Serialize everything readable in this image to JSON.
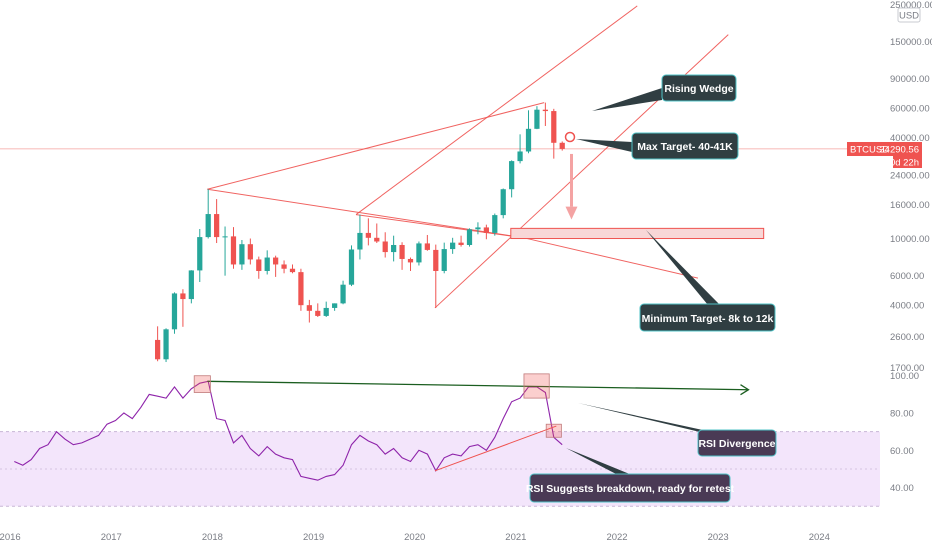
{
  "chart_data": {
    "type": "candlestick",
    "symbol": "BTCUSD",
    "last_price": "34290.56",
    "countdown": "30d 22h",
    "currency_badge": "USD",
    "price_scale": "log",
    "price_ticks": [
      "250000.00",
      "150000.00",
      "90000.00",
      "60000.00",
      "40000.00",
      "24000.00",
      "16000.00",
      "10000.00",
      "6000.00",
      "4000.00",
      "2600.00",
      "1700.00"
    ],
    "rsi_ticks": [
      "100.00",
      "80.00",
      "60.00",
      "40.00"
    ],
    "x_ticks": [
      "2016",
      "2017",
      "2018",
      "2019",
      "2020",
      "2021",
      "2022",
      "2023",
      "2024"
    ],
    "x_range": [
      2015.9,
      2024.6
    ],
    "price_range": [
      1640,
      255000
    ],
    "rsi_range": [
      28,
      102
    ],
    "rsi_band": [
      30,
      70
    ],
    "rsi_midline": 50,
    "colors": {
      "up": "#26a69a",
      "down": "#ef5350",
      "rsi": "#8e24aa",
      "wedge": "#ef5350",
      "callout": "#303e42",
      "callout_border": "#4fc3c7",
      "rsi_callout": "#4a3a55",
      "rsi_band": "#f3e5fb"
    },
    "candles": [
      {
        "t": "2017-06",
        "o": 2480,
        "h": 2990,
        "l": 1850,
        "c": 1900
      },
      {
        "t": "2017-07",
        "o": 1900,
        "h": 2910,
        "l": 1830,
        "c": 2870
      },
      {
        "t": "2017-08",
        "o": 2870,
        "h": 4770,
        "l": 2700,
        "c": 4700
      },
      {
        "t": "2017-09",
        "o": 4700,
        "h": 4980,
        "l": 2970,
        "c": 4350
      },
      {
        "t": "2017-10",
        "o": 4350,
        "h": 6470,
        "l": 4100,
        "c": 6450
      },
      {
        "t": "2017-11",
        "o": 6450,
        "h": 11400,
        "l": 5500,
        "c": 10200
      },
      {
        "t": "2017-12",
        "o": 10200,
        "h": 19700,
        "l": 10000,
        "c": 14000
      },
      {
        "t": "2018-01",
        "o": 14000,
        "h": 17200,
        "l": 9400,
        "c": 10200
      },
      {
        "t": "2018-02",
        "o": 10200,
        "h": 11800,
        "l": 6000,
        "c": 10300
      },
      {
        "t": "2018-03",
        "o": 10300,
        "h": 11700,
        "l": 6600,
        "c": 7000
      },
      {
        "t": "2018-04",
        "o": 7000,
        "h": 9800,
        "l": 6500,
        "c": 9250
      },
      {
        "t": "2018-05",
        "o": 9250,
        "h": 10000,
        "l": 7000,
        "c": 7500
      },
      {
        "t": "2018-06",
        "o": 7500,
        "h": 7800,
        "l": 5750,
        "c": 6400
      },
      {
        "t": "2018-07",
        "o": 6400,
        "h": 8500,
        "l": 6100,
        "c": 7700
      },
      {
        "t": "2018-08",
        "o": 7700,
        "h": 7900,
        "l": 5900,
        "c": 7000
      },
      {
        "t": "2018-09",
        "o": 7000,
        "h": 7400,
        "l": 6200,
        "c": 6600
      },
      {
        "t": "2018-10",
        "o": 6600,
        "h": 7000,
        "l": 6200,
        "c": 6300
      },
      {
        "t": "2018-11",
        "o": 6300,
        "h": 6600,
        "l": 3700,
        "c": 4000
      },
      {
        "t": "2018-12",
        "o": 4000,
        "h": 4300,
        "l": 3150,
        "c": 3700
      },
      {
        "t": "2019-01",
        "o": 3700,
        "h": 4100,
        "l": 3400,
        "c": 3450
      },
      {
        "t": "2019-02",
        "o": 3450,
        "h": 4200,
        "l": 3400,
        "c": 3850
      },
      {
        "t": "2019-03",
        "o": 3850,
        "h": 4100,
        "l": 3700,
        "c": 4100
      },
      {
        "t": "2019-04",
        "o": 4100,
        "h": 5600,
        "l": 4050,
        "c": 5300
      },
      {
        "t": "2019-05",
        "o": 5300,
        "h": 9100,
        "l": 5200,
        "c": 8600
      },
      {
        "t": "2019-06",
        "o": 8600,
        "h": 13900,
        "l": 7500,
        "c": 10800
      },
      {
        "t": "2019-07",
        "o": 10800,
        "h": 13200,
        "l": 9100,
        "c": 10100
      },
      {
        "t": "2019-08",
        "o": 10100,
        "h": 12300,
        "l": 9400,
        "c": 9600
      },
      {
        "t": "2019-09",
        "o": 9600,
        "h": 10900,
        "l": 7700,
        "c": 8300
      },
      {
        "t": "2019-10",
        "o": 8300,
        "h": 10400,
        "l": 7300,
        "c": 9150
      },
      {
        "t": "2019-11",
        "o": 9150,
        "h": 9500,
        "l": 6500,
        "c": 7550
      },
      {
        "t": "2019-12",
        "o": 7550,
        "h": 7700,
        "l": 6400,
        "c": 7200
      },
      {
        "t": "2020-01",
        "o": 7200,
        "h": 9600,
        "l": 6900,
        "c": 9350
      },
      {
        "t": "2020-02",
        "o": 9350,
        "h": 10500,
        "l": 8450,
        "c": 8550
      },
      {
        "t": "2020-03",
        "o": 8550,
        "h": 9200,
        "l": 3850,
        "c": 6400
      },
      {
        "t": "2020-04",
        "o": 6400,
        "h": 9450,
        "l": 6200,
        "c": 8650
      },
      {
        "t": "2020-05",
        "o": 8650,
        "h": 10100,
        "l": 8100,
        "c": 9450
      },
      {
        "t": "2020-06",
        "o": 9450,
        "h": 10400,
        "l": 8950,
        "c": 9150
      },
      {
        "t": "2020-07",
        "o": 9150,
        "h": 11500,
        "l": 8950,
        "c": 11350
      },
      {
        "t": "2020-08",
        "o": 11350,
        "h": 12500,
        "l": 10600,
        "c": 11650
      },
      {
        "t": "2020-09",
        "o": 11650,
        "h": 12100,
        "l": 9900,
        "c": 10800
      },
      {
        "t": "2020-10",
        "o": 10800,
        "h": 14100,
        "l": 10400,
        "c": 13800
      },
      {
        "t": "2020-11",
        "o": 13800,
        "h": 19900,
        "l": 13200,
        "c": 19700
      },
      {
        "t": "2020-12",
        "o": 19700,
        "h": 29300,
        "l": 17600,
        "c": 29000
      },
      {
        "t": "2021-01",
        "o": 29000,
        "h": 41900,
        "l": 28100,
        "c": 33100
      },
      {
        "t": "2021-02",
        "o": 33100,
        "h": 58300,
        "l": 32300,
        "c": 45200
      },
      {
        "t": "2021-03",
        "o": 45200,
        "h": 61700,
        "l": 45000,
        "c": 58800
      },
      {
        "t": "2021-04",
        "o": 58800,
        "h": 64800,
        "l": 47000,
        "c": 57700
      },
      {
        "t": "2021-05",
        "o": 57700,
        "h": 59500,
        "l": 30000,
        "c": 37300
      },
      {
        "t": "2021-06",
        "o": 37300,
        "h": 38000,
        "l": 33500,
        "c": 34290
      }
    ],
    "rsi": [
      {
        "t": "2016-01",
        "v": 54
      },
      {
        "t": "2016-02",
        "v": 52
      },
      {
        "t": "2016-03",
        "v": 55
      },
      {
        "t": "2016-04",
        "v": 61
      },
      {
        "t": "2016-05",
        "v": 63
      },
      {
        "t": "2016-06",
        "v": 70
      },
      {
        "t": "2016-07",
        "v": 66
      },
      {
        "t": "2016-08",
        "v": 63
      },
      {
        "t": "2016-09",
        "v": 64
      },
      {
        "t": "2016-10",
        "v": 66
      },
      {
        "t": "2016-11",
        "v": 68
      },
      {
        "t": "2016-12",
        "v": 74
      },
      {
        "t": "2017-01",
        "v": 76
      },
      {
        "t": "2017-02",
        "v": 80
      },
      {
        "t": "2017-03",
        "v": 77
      },
      {
        "t": "2017-04",
        "v": 83
      },
      {
        "t": "2017-05",
        "v": 90
      },
      {
        "t": "2017-06",
        "v": 89
      },
      {
        "t": "2017-07",
        "v": 88
      },
      {
        "t": "2017-08",
        "v": 94
      },
      {
        "t": "2017-09",
        "v": 88
      },
      {
        "t": "2017-10",
        "v": 93
      },
      {
        "t": "2017-11",
        "v": 96
      },
      {
        "t": "2017-12",
        "v": 97
      },
      {
        "t": "2018-01",
        "v": 77
      },
      {
        "t": "2018-02",
        "v": 76
      },
      {
        "t": "2018-03",
        "v": 64
      },
      {
        "t": "2018-04",
        "v": 68
      },
      {
        "t": "2018-05",
        "v": 61
      },
      {
        "t": "2018-06",
        "v": 57
      },
      {
        "t": "2018-07",
        "v": 62
      },
      {
        "t": "2018-08",
        "v": 58
      },
      {
        "t": "2018-09",
        "v": 56
      },
      {
        "t": "2018-10",
        "v": 55
      },
      {
        "t": "2018-11",
        "v": 46
      },
      {
        "t": "2018-12",
        "v": 45
      },
      {
        "t": "2019-01",
        "v": 44
      },
      {
        "t": "2019-02",
        "v": 46
      },
      {
        "t": "2019-03",
        "v": 47
      },
      {
        "t": "2019-04",
        "v": 52
      },
      {
        "t": "2019-05",
        "v": 63
      },
      {
        "t": "2019-06",
        "v": 68
      },
      {
        "t": "2019-07",
        "v": 65
      },
      {
        "t": "2019-08",
        "v": 63
      },
      {
        "t": "2019-09",
        "v": 58
      },
      {
        "t": "2019-10",
        "v": 61
      },
      {
        "t": "2019-11",
        "v": 56
      },
      {
        "t": "2019-12",
        "v": 54
      },
      {
        "t": "2020-01",
        "v": 60
      },
      {
        "t": "2020-02",
        "v": 58
      },
      {
        "t": "2020-03",
        "v": 49
      },
      {
        "t": "2020-04",
        "v": 56
      },
      {
        "t": "2020-05",
        "v": 58
      },
      {
        "t": "2020-06",
        "v": 57
      },
      {
        "t": "2020-07",
        "v": 62
      },
      {
        "t": "2020-08",
        "v": 63
      },
      {
        "t": "2020-09",
        "v": 60
      },
      {
        "t": "2020-10",
        "v": 67
      },
      {
        "t": "2020-11",
        "v": 77
      },
      {
        "t": "2020-12",
        "v": 86
      },
      {
        "t": "2021-01",
        "v": 88
      },
      {
        "t": "2021-02",
        "v": 94
      },
      {
        "t": "2021-03",
        "v": 94
      },
      {
        "t": "2021-04",
        "v": 91
      },
      {
        "t": "2021-05",
        "v": 67
      },
      {
        "t": "2021-06",
        "v": 63
      }
    ],
    "annotations": {
      "rising_wedge": "Rising Wedge",
      "max_target": "Max Target- 40-41K",
      "min_target": "Minimum Target- 8k to 12k",
      "rsi_divergence": "RSI Divergence",
      "rsi_breakdown": "RSI Suggests breakdown, ready for retest"
    },
    "target_zone": [
      10000,
      11500
    ]
  }
}
